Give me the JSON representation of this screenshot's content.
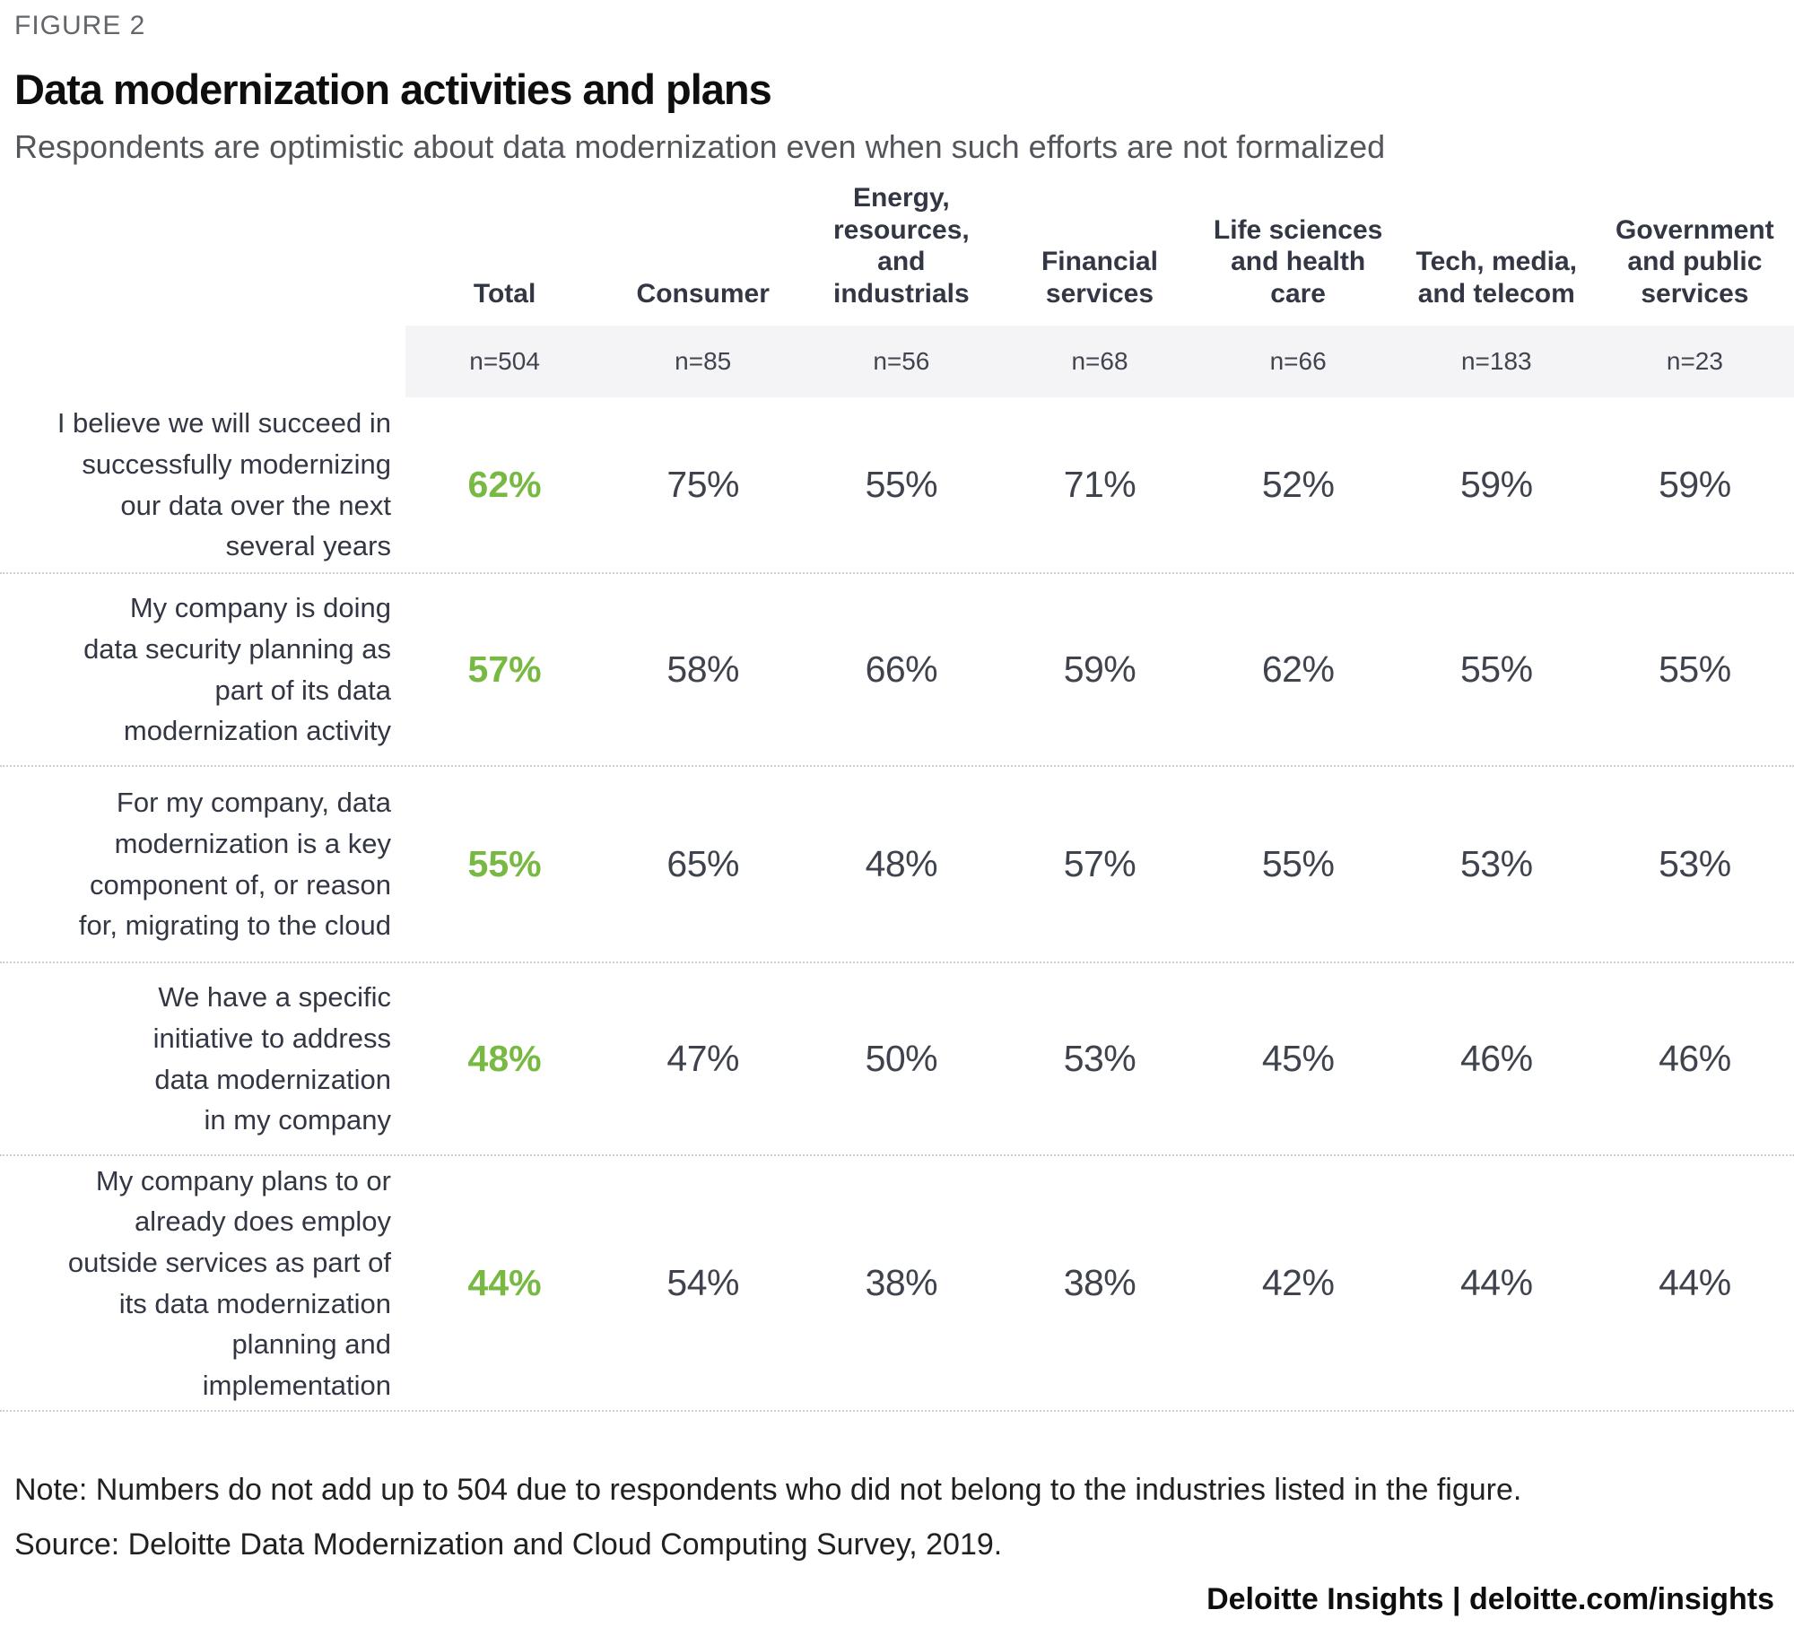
{
  "figure": {
    "eyebrow": "FIGURE 2",
    "title": "Data modernization activities and plans",
    "subtitle": "Respondents are optimistic about data modernization even when such efforts are not formalized"
  },
  "table": {
    "columns": [
      {
        "label": "Total",
        "n": "n=504"
      },
      {
        "label": "Consumer",
        "n": "n=85"
      },
      {
        "label": "Energy,\nresources,\nand industrials",
        "n": "n=56"
      },
      {
        "label": "Financial\nservices",
        "n": "n=68"
      },
      {
        "label": "Life sciences\nand health care",
        "n": "n=66"
      },
      {
        "label": "Tech, media,\nand telecom",
        "n": "n=183"
      },
      {
        "label": "Government\nand public\nservices",
        "n": "n=23"
      }
    ],
    "rows": [
      {
        "label": "I believe we will succeed in\nsuccessfully modernizing\nour data over the next\nseveral years",
        "values": [
          "62%",
          "75%",
          "55%",
          "71%",
          "52%",
          "59%",
          "59%"
        ]
      },
      {
        "label": "My company is doing\ndata security planning as\npart of its data\nmodernization activity",
        "values": [
          "57%",
          "58%",
          "66%",
          "59%",
          "62%",
          "55%",
          "55%"
        ]
      },
      {
        "label": "For my company, data\nmodernization is a key\ncomponent of, or reason\nfor, migrating to the cloud",
        "values": [
          "55%",
          "65%",
          "48%",
          "57%",
          "55%",
          "53%",
          "53%"
        ]
      },
      {
        "label": "We have a specific\ninitiative to address\ndata modernization\nin my company",
        "values": [
          "48%",
          "47%",
          "50%",
          "53%",
          "45%",
          "46%",
          "46%"
        ]
      },
      {
        "label": "My company plans to or\nalready does employ\noutside services  as part of\nits data modernization\nplanning and\nimplementation",
        "values": [
          "44%",
          "54%",
          "38%",
          "38%",
          "42%",
          "44%",
          "44%"
        ]
      }
    ]
  },
  "footer": {
    "note": "Note: Numbers do not add up to 504 due to respondents who did not belong to the industries listed in the figure.",
    "source": "Source: Deloitte Data Modernization and Cloud Computing Survey, 2019.",
    "branding": "Deloitte Insights | deloitte.com/insights"
  },
  "colors": {
    "accent_green": "#78b943",
    "header_text": "#333744",
    "value_text": "#3f434e",
    "band_background": "#f4f4f6",
    "eyebrow_gray": "#63666a",
    "subtitle_gray": "#53565a"
  },
  "chart_data": {
    "type": "table",
    "title": "Data modernization activities and plans",
    "subtitle": "Respondents are optimistic about data modernization even when such efforts are not formalized",
    "columns": [
      "Total",
      "Consumer",
      "Energy, resources, and industrials",
      "Financial services",
      "Life sciences and health care",
      "Tech, media, and telecom",
      "Government and public services"
    ],
    "sample_sizes": [
      504,
      85,
      56,
      68,
      66,
      183,
      23
    ],
    "rows": [
      {
        "statement": "I believe we will succeed in successfully modernizing our data over the next several years",
        "values_pct": [
          62,
          75,
          55,
          71,
          52,
          59,
          59
        ]
      },
      {
        "statement": "My company is doing data security planning as part of its data modernization activity",
        "values_pct": [
          57,
          58,
          66,
          59,
          62,
          55,
          55
        ]
      },
      {
        "statement": "For my company, data modernization is a key component of, or reason for, migrating to the cloud",
        "values_pct": [
          55,
          65,
          48,
          57,
          55,
          53,
          53
        ]
      },
      {
        "statement": "We have a specific initiative to address data modernization in my company",
        "values_pct": [
          48,
          47,
          50,
          53,
          45,
          46,
          46
        ]
      },
      {
        "statement": "My company plans to or already does employ outside services as part of its data modernization planning and implementation",
        "values_pct": [
          44,
          54,
          38,
          38,
          42,
          44,
          44
        ]
      }
    ],
    "notes": [
      "Note: Numbers do not add up to 504 due to respondents who did not belong to the industries listed in the figure.",
      "Source: Deloitte Data Modernization and Cloud Computing Survey, 2019."
    ],
    "value_emphasis": "Total column shown in green bold"
  }
}
